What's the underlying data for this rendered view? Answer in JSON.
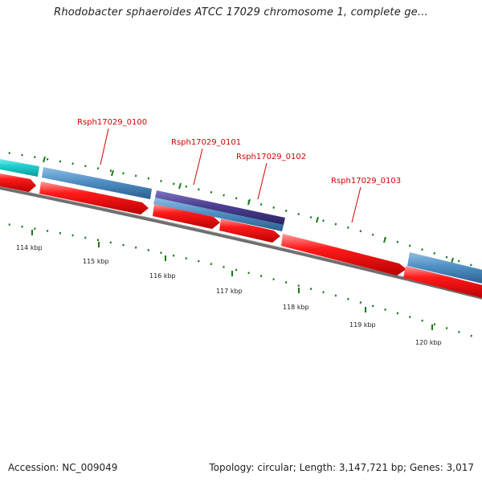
{
  "title": "Rhodobacter sphaeroides ATCC 17029 chromosome 1, complete ge...",
  "gene_labels": [
    {
      "id": "r0100",
      "text": "Rsph17029_0100"
    },
    {
      "id": "r0101",
      "text": "Rsph17029_0101"
    },
    {
      "id": "r0102",
      "text": "Rsph17029_0102"
    },
    {
      "id": "r0103",
      "text": "Rsph17029_0103"
    }
  ],
  "scale_ticks": [
    "114 kbp",
    "115 kbp",
    "116 kbp",
    "117 kbp",
    "118 kbp",
    "119 kbp",
    "120 kbp"
  ],
  "footer": {
    "accession": "Accession: NC_009049",
    "stats": "Topology: circular; Length: 3,147,721 bp; Genes: 3,017"
  },
  "colors": {
    "cds_forward": "#e60000",
    "gene_blue": "#4f8fc4",
    "gene_purple": "#4a3f92",
    "gene_cyan": "#1ecece",
    "label_red": "#d40000",
    "tick_green": "#1a7a1a",
    "backbone": "#808080"
  }
}
